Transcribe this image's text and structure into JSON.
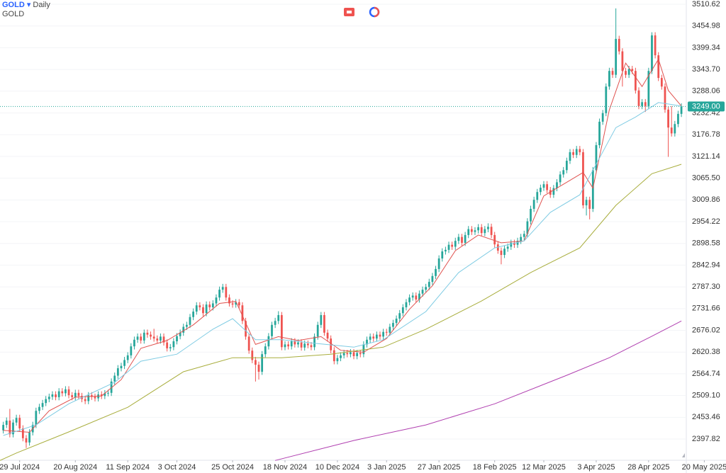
{
  "header": {
    "symbol": "GOLD",
    "interval": "Daily",
    "name": "GOLD"
  },
  "chart_data": {
    "type": "candlestick",
    "up_color": "#26a69a",
    "down_color": "#ef5350",
    "candles": [
      [
        2420,
        2442,
        2412,
        2434
      ],
      [
        2434,
        2453,
        2426,
        2445
      ],
      [
        2445,
        2475,
        2402,
        2410
      ],
      [
        2410,
        2448,
        2402,
        2440
      ],
      [
        2440,
        2460,
        2432,
        2452
      ],
      [
        2452,
        2460,
        2417,
        2425
      ],
      [
        2425,
        2433,
        2392,
        2400
      ],
      [
        2400,
        2408,
        2375,
        2389
      ],
      [
        2389,
        2423,
        2381,
        2415
      ],
      [
        2415,
        2442,
        2407,
        2434
      ],
      [
        2434,
        2478,
        2426,
        2470
      ],
      [
        2470,
        2488,
        2462,
        2480
      ],
      [
        2480,
        2498,
        2472,
        2490
      ],
      [
        2490,
        2508,
        2482,
        2500
      ],
      [
        2500,
        2514,
        2492,
        2506
      ],
      [
        2506,
        2520,
        2498,
        2512
      ],
      [
        2512,
        2520,
        2497,
        2505
      ],
      [
        2505,
        2528,
        2497,
        2520
      ],
      [
        2520,
        2528,
        2507,
        2515
      ],
      [
        2515,
        2533,
        2507,
        2525
      ],
      [
        2525,
        2533,
        2502,
        2510
      ],
      [
        2510,
        2518,
        2497,
        2505
      ],
      [
        2505,
        2524,
        2497,
        2516
      ],
      [
        2516,
        2524,
        2500,
        2508
      ],
      [
        2508,
        2516,
        2492,
        2500
      ],
      [
        2500,
        2508,
        2487,
        2495
      ],
      [
        2495,
        2518,
        2487,
        2510
      ],
      [
        2510,
        2518,
        2498,
        2506
      ],
      [
        2506,
        2514,
        2494,
        2502
      ],
      [
        2502,
        2520,
        2494,
        2512
      ],
      [
        2512,
        2520,
        2500,
        2508
      ],
      [
        2508,
        2523,
        2500,
        2515
      ],
      [
        2515,
        2524,
        2507,
        2516
      ],
      [
        2516,
        2553,
        2508,
        2545
      ],
      [
        2545,
        2568,
        2537,
        2560
      ],
      [
        2560,
        2587,
        2552,
        2579
      ],
      [
        2579,
        2593,
        2571,
        2585
      ],
      [
        2585,
        2608,
        2577,
        2600
      ],
      [
        2600,
        2620,
        2592,
        2612
      ],
      [
        2612,
        2643,
        2604,
        2635
      ],
      [
        2635,
        2660,
        2627,
        2652
      ],
      [
        2652,
        2668,
        2644,
        2660
      ],
      [
        2660,
        2668,
        2642,
        2650
      ],
      [
        2650,
        2678,
        2642,
        2670
      ],
      [
        2670,
        2678,
        2657,
        2665
      ],
      [
        2665,
        2673,
        2652,
        2660
      ],
      [
        2660,
        2680,
        2647,
        2655
      ],
      [
        2655,
        2663,
        2642,
        2650
      ],
      [
        2650,
        2668,
        2642,
        2660
      ],
      [
        2660,
        2668,
        2637,
        2645
      ],
      [
        2645,
        2653,
        2622,
        2630
      ],
      [
        2630,
        2641,
        2622,
        2633
      ],
      [
        2633,
        2656,
        2625,
        2648
      ],
      [
        2648,
        2669,
        2640,
        2661
      ],
      [
        2661,
        2678,
        2653,
        2670
      ],
      [
        2670,
        2693,
        2662,
        2685
      ],
      [
        2685,
        2698,
        2677,
        2690
      ],
      [
        2690,
        2718,
        2682,
        2710
      ],
      [
        2710,
        2732,
        2702,
        2724
      ],
      [
        2724,
        2748,
        2716,
        2740
      ],
      [
        2740,
        2748,
        2727,
        2735
      ],
      [
        2735,
        2743,
        2712,
        2720
      ],
      [
        2720,
        2750,
        2712,
        2742
      ],
      [
        2742,
        2750,
        2727,
        2735
      ],
      [
        2735,
        2753,
        2727,
        2745
      ],
      [
        2745,
        2768,
        2737,
        2760
      ],
      [
        2760,
        2788,
        2752,
        2780
      ],
      [
        2780,
        2795,
        2772,
        2787
      ],
      [
        2787,
        2795,
        2752,
        2760
      ],
      [
        2760,
        2768,
        2737,
        2745
      ],
      [
        2745,
        2753,
        2734,
        2742
      ],
      [
        2742,
        2756,
        2734,
        2748
      ],
      [
        2748,
        2756,
        2732,
        2740
      ],
      [
        2740,
        2748,
        2692,
        2700
      ],
      [
        2700,
        2708,
        2652,
        2660
      ],
      [
        2660,
        2668,
        2616,
        2624
      ],
      [
        2624,
        2632,
        2592,
        2600
      ],
      [
        2600,
        2608,
        2545,
        2588
      ],
      [
        2588,
        2596,
        2550,
        2570
      ],
      [
        2570,
        2623,
        2562,
        2615
      ],
      [
        2615,
        2643,
        2607,
        2635
      ],
      [
        2635,
        2669,
        2627,
        2661
      ],
      [
        2661,
        2698,
        2653,
        2690
      ],
      [
        2690,
        2708,
        2682,
        2700
      ],
      [
        2700,
        2725,
        2692,
        2715
      ],
      [
        2715,
        2723,
        2625,
        2633
      ],
      [
        2633,
        2648,
        2625,
        2640
      ],
      [
        2640,
        2648,
        2627,
        2635
      ],
      [
        2635,
        2656,
        2627,
        2648
      ],
      [
        2648,
        2656,
        2632,
        2640
      ],
      [
        2640,
        2653,
        2632,
        2645
      ],
      [
        2645,
        2653,
        2624,
        2632
      ],
      [
        2632,
        2650,
        2624,
        2642
      ],
      [
        2642,
        2650,
        2630,
        2638
      ],
      [
        2638,
        2646,
        2625,
        2633
      ],
      [
        2633,
        2668,
        2625,
        2660
      ],
      [
        2660,
        2698,
        2652,
        2690
      ],
      [
        2690,
        2723,
        2682,
        2715
      ],
      [
        2715,
        2723,
        2662,
        2670
      ],
      [
        2670,
        2678,
        2647,
        2655
      ],
      [
        2655,
        2663,
        2617,
        2625
      ],
      [
        2625,
        2633,
        2589,
        2597
      ],
      [
        2597,
        2613,
        2589,
        2605
      ],
      [
        2605,
        2620,
        2597,
        2612
      ],
      [
        2612,
        2626,
        2604,
        2618
      ],
      [
        2618,
        2626,
        2607,
        2615
      ],
      [
        2615,
        2628,
        2607,
        2620
      ],
      [
        2620,
        2628,
        2602,
        2610
      ],
      [
        2610,
        2626,
        2602,
        2618
      ],
      [
        2618,
        2626,
        2607,
        2615
      ],
      [
        2615,
        2648,
        2607,
        2640
      ],
      [
        2640,
        2660,
        2632,
        2652
      ],
      [
        2652,
        2668,
        2644,
        2660
      ],
      [
        2660,
        2668,
        2647,
        2655
      ],
      [
        2655,
        2673,
        2647,
        2665
      ],
      [
        2665,
        2673,
        2652,
        2660
      ],
      [
        2660,
        2680,
        2652,
        2672
      ],
      [
        2672,
        2680,
        2662,
        2670
      ],
      [
        2670,
        2693,
        2662,
        2685
      ],
      [
        2685,
        2703,
        2677,
        2695
      ],
      [
        2695,
        2714,
        2687,
        2706
      ],
      [
        2706,
        2728,
        2698,
        2720
      ],
      [
        2720,
        2743,
        2712,
        2735
      ],
      [
        2735,
        2756,
        2727,
        2748
      ],
      [
        2748,
        2768,
        2740,
        2760
      ],
      [
        2760,
        2773,
        2752,
        2765
      ],
      [
        2765,
        2773,
        2747,
        2755
      ],
      [
        2755,
        2778,
        2747,
        2770
      ],
      [
        2770,
        2788,
        2762,
        2780
      ],
      [
        2780,
        2795,
        2772,
        2787
      ],
      [
        2787,
        2808,
        2779,
        2800
      ],
      [
        2800,
        2823,
        2792,
        2815
      ],
      [
        2815,
        2841,
        2807,
        2833
      ],
      [
        2833,
        2868,
        2825,
        2860
      ],
      [
        2860,
        2886,
        2852,
        2878
      ],
      [
        2878,
        2890,
        2870,
        2882
      ],
      [
        2882,
        2903,
        2874,
        2895
      ],
      [
        2895,
        2903,
        2882,
        2890
      ],
      [
        2890,
        2913,
        2882,
        2905
      ],
      [
        2905,
        2923,
        2897,
        2915
      ],
      [
        2915,
        2923,
        2892,
        2900
      ],
      [
        2900,
        2928,
        2892,
        2920
      ],
      [
        2920,
        2943,
        2912,
        2935
      ],
      [
        2935,
        2943,
        2920,
        2928
      ],
      [
        2928,
        2940,
        2920,
        2932
      ],
      [
        2932,
        2948,
        2924,
        2940
      ],
      [
        2940,
        2948,
        2917,
        2925
      ],
      [
        2925,
        2943,
        2917,
        2935
      ],
      [
        2935,
        2950,
        2927,
        2941
      ],
      [
        2941,
        2949,
        2912,
        2920
      ],
      [
        2920,
        2928,
        2888,
        2896
      ],
      [
        2896,
        2904,
        2872,
        2880
      ],
      [
        2880,
        2888,
        2845,
        2869
      ],
      [
        2869,
        2893,
        2861,
        2885
      ],
      [
        2885,
        2898,
        2877,
        2890
      ],
      [
        2890,
        2908,
        2882,
        2900
      ],
      [
        2900,
        2908,
        2887,
        2895
      ],
      [
        2895,
        2913,
        2887,
        2905
      ],
      [
        2905,
        2923,
        2897,
        2915
      ],
      [
        2915,
        2931,
        2907,
        2923
      ],
      [
        2923,
        2963,
        2915,
        2955
      ],
      [
        2955,
        2995,
        2947,
        2987
      ],
      [
        2987,
        3018,
        2979,
        3010
      ],
      [
        3010,
        3038,
        3002,
        3030
      ],
      [
        3030,
        3049,
        3022,
        3041
      ],
      [
        3041,
        3058,
        3033,
        3050
      ],
      [
        3050,
        3058,
        3027,
        3035
      ],
      [
        3035,
        3043,
        3015,
        3023
      ],
      [
        3023,
        3048,
        3015,
        3040
      ],
      [
        3040,
        3063,
        3032,
        3055
      ],
      [
        3055,
        3083,
        3047,
        3075
      ],
      [
        3075,
        3094,
        3067,
        3086
      ],
      [
        3086,
        3118,
        3078,
        3110
      ],
      [
        3110,
        3140,
        3102,
        3132
      ],
      [
        3132,
        3140,
        3117,
        3125
      ],
      [
        3125,
        3148,
        3117,
        3140
      ],
      [
        3140,
        3148,
        3124,
        3132
      ],
      [
        3132,
        3140,
        2988,
        2996
      ],
      [
        2996,
        3018,
        2970,
        3010
      ],
      [
        3010,
        3018,
        2960,
        2987
      ],
      [
        2987,
        3094,
        2979,
        3086
      ],
      [
        3086,
        3158,
        3078,
        3150
      ],
      [
        3150,
        3218,
        3142,
        3210
      ],
      [
        3210,
        3240,
        3202,
        3232
      ],
      [
        3232,
        3308,
        3224,
        3300
      ],
      [
        3300,
        3348,
        3292,
        3340
      ],
      [
        3340,
        3348,
        3322,
        3330
      ],
      [
        3330,
        3500,
        3322,
        3422
      ],
      [
        3422,
        3430,
        3382,
        3390
      ],
      [
        3390,
        3398,
        3300,
        3340
      ],
      [
        3340,
        3348,
        3322,
        3330
      ],
      [
        3330,
        3353,
        3322,
        3345
      ],
      [
        3345,
        3353,
        3332,
        3340
      ],
      [
        3340,
        3348,
        3282,
        3290
      ],
      [
        3290,
        3298,
        3242,
        3250
      ],
      [
        3250,
        3268,
        3242,
        3260
      ],
      [
        3260,
        3268,
        3235,
        3250
      ],
      [
        3250,
        3348,
        3242,
        3340
      ],
      [
        3340,
        3439,
        3332,
        3431
      ],
      [
        3431,
        3439,
        3372,
        3380
      ],
      [
        3380,
        3388,
        3314,
        3322
      ],
      [
        3322,
        3330,
        3292,
        3300
      ],
      [
        3300,
        3308,
        3233,
        3241
      ],
      [
        3241,
        3249,
        3120,
        3195
      ],
      [
        3195,
        3250,
        3172,
        3180
      ],
      [
        3180,
        3212,
        3172,
        3204
      ],
      [
        3204,
        3238,
        3196,
        3230
      ],
      [
        3230,
        3257,
        3222,
        3249
      ]
    ],
    "xlim": [
      -1,
      208.5
    ],
    "xticks": [
      {
        "value": 5,
        "label": "29 Jul 2024"
      },
      {
        "value": 22,
        "label": "20 Aug 2024"
      },
      {
        "value": 38,
        "label": "11 Sep 2024"
      },
      {
        "value": 53,
        "label": "3 Oct 2024"
      },
      {
        "value": 70,
        "label": "25 Oct 2024"
      },
      {
        "value": 86,
        "label": "18 Nov 2024"
      },
      {
        "value": 102,
        "label": "10 Dec 2024"
      },
      {
        "value": 117,
        "label": "3 Jan 2025"
      },
      {
        "value": 133,
        "label": "27 Jan 2025"
      },
      {
        "value": 150,
        "label": "18 Feb 2025"
      },
      {
        "value": 165,
        "label": "12 Mar 2025"
      },
      {
        "value": 181,
        "label": "3 Apr 2025"
      },
      {
        "value": 197,
        "label": "28 Apr 2025"
      },
      {
        "value": 214,
        "label": "20 May 2025"
      }
    ],
    "ylim": [
      2343.5,
      3521.5
    ],
    "yticks": [
      3510.62,
      3454.98,
      3399.34,
      {
        "value": 3343.7,
        "label": "3343.70"
      },
      3288.06,
      3232.42,
      3176.78,
      3121.14,
      {
        "value": 3065.5,
        "label": "3065.50"
      },
      3009.86,
      2954.22,
      2898.58,
      2842.94,
      {
        "value": 2787.3,
        "label": "2787.30"
      },
      2731.66,
      2676.02,
      2620.38,
      2564.74,
      {
        "value": 2509.1,
        "label": "2509.10"
      },
      2453.46,
      2397.82
    ],
    "last_price": {
      "value": 3249,
      "label": "3249.00"
    },
    "last_price_color": "#26a69a",
    "overlays": [
      {
        "color": "#e0524f",
        "x": [
          0,
          8,
          14,
          22,
          30,
          36,
          42,
          50,
          58,
          66,
          71,
          77,
          84,
          90,
          97,
          103,
          110,
          117,
          124,
          131,
          138,
          145,
          152,
          159,
          165,
          171,
          177,
          180,
          185,
          190,
          195,
          200,
          203,
          207
        ],
        "values": [
          2420,
          2415,
          2470,
          2505,
          2508,
          2550,
          2630,
          2650,
          2690,
          2745,
          2750,
          2640,
          2660,
          2650,
          2660,
          2625,
          2620,
          2655,
          2730,
          2790,
          2880,
          2920,
          2900,
          2905,
          3020,
          3050,
          3080,
          3040,
          3240,
          3360,
          3300,
          3370,
          3290,
          3250
        ]
      },
      {
        "color": "#7ecbe3",
        "x": [
          0,
          10,
          20,
          34,
          42,
          53,
          64,
          70,
          77,
          85,
          96,
          107,
          116,
          129,
          139,
          150,
          159,
          167,
          176,
          180,
          187,
          193,
          200,
          207
        ],
        "values": [
          2407,
          2434,
          2488,
          2543,
          2597,
          2615,
          2679,
          2706,
          2652,
          2652,
          2642,
          2633,
          2652,
          2724,
          2824,
          2887,
          2905,
          2978,
          3023,
          3086,
          3195,
          3222,
          3259,
          3250
        ]
      },
      {
        "color": "#a8ad3c",
        "x": [
          -1,
          4,
          20,
          38,
          55,
          70,
          85,
          100,
          116,
          129,
          146,
          161,
          176,
          187,
          198,
          207
        ],
        "values": [
          2343,
          2362,
          2416,
          2479,
          2570,
          2606,
          2606,
          2615,
          2633,
          2679,
          2751,
          2824,
          2887,
          2996,
          3077,
          3101
        ]
      },
      {
        "color": "#b03fb0",
        "x": [
          83,
          107,
          129,
          150,
          172,
          185,
          198,
          207
        ],
        "values": [
          2343,
          2394,
          2434,
          2488,
          2561,
          2606,
          2661,
          2700
        ]
      }
    ]
  }
}
